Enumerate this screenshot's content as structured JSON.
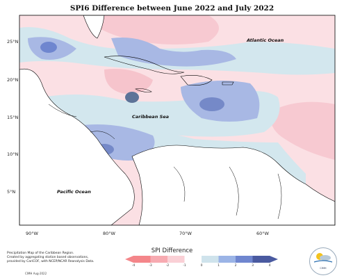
{
  "title": "SPI6 Difference between June 2022 and July 2022",
  "lat_labels": [
    "25°N",
    "20°N",
    "15°N",
    "10°N",
    "5°N"
  ],
  "lon_labels": [
    "90°W",
    "80°W",
    "70°W",
    "60°W"
  ],
  "region_labels": {
    "atlantic": "Atlantic Ocean",
    "caribbean": "Caribbean Sea",
    "pacific": "Pacific Ocean"
  },
  "credit_lines": [
    "Precipitation Map of the Caribbean Region.",
    "Created by aggregating station based observations,",
    "provided by CariCOF, with NCEP/NCAR Reanalysis Data."
  ],
  "cmh_label": "CIMH Aug-2022",
  "legend": {
    "title": "SPI Difference",
    "ticks": [
      "-4",
      "-3",
      "-2",
      "-1",
      "0",
      "1",
      "2",
      "3",
      "4"
    ],
    "colors": [
      "#f4868a",
      "#f7aab1",
      "#fad0d6",
      "#ffffff",
      "#cfe3ec",
      "#9bb4e6",
      "#6f86cf",
      "#4a5aa0"
    ]
  },
  "logo_text": "CIMH",
  "colors": {
    "dry_light": "#fbe0e4",
    "dry_mid": "#f6c4cc",
    "wet_light": "#d3e7ee",
    "wet_mid": "#a8b8e4",
    "wet_dark": "#7589c8",
    "wet_darkest": "#5d7398",
    "land_fill": "#ffffff",
    "border": "#000000"
  }
}
